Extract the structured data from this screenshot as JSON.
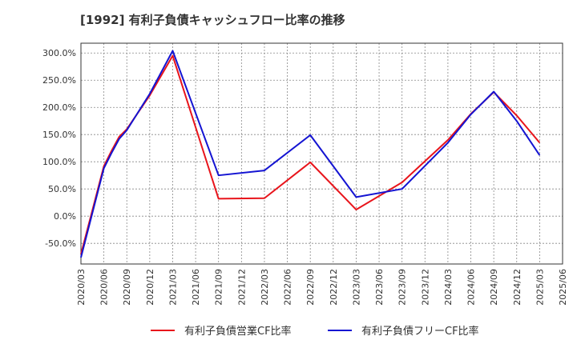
{
  "chart_data": {
    "type": "line",
    "title": "[1992]  有利子負債キャッシュフロー比率の推移",
    "xlabel": "",
    "ylabel": "",
    "x_ticks": [
      "2020/03",
      "2020/06",
      "2020/09",
      "2020/12",
      "2021/03",
      "2021/06",
      "2021/09",
      "2021/12",
      "2022/03",
      "2022/06",
      "2022/09",
      "2022/12",
      "2023/03",
      "2023/06",
      "2023/09",
      "2023/12",
      "2024/03",
      "2024/06",
      "2024/09",
      "2024/12",
      "2025/03",
      "2025/06"
    ],
    "y_ticks": [
      -50,
      0,
      50,
      100,
      150,
      200,
      250,
      300
    ],
    "y_tick_labels": [
      "-50.0%",
      "0.0%",
      "50.0%",
      "100.0%",
      "150.0%",
      "200.0%",
      "250.0%",
      "300.0%"
    ],
    "ylim": [
      -88,
      318
    ],
    "grid": true,
    "legend_position": "bottom",
    "series": [
      {
        "name": "有利子負債営業CF比率",
        "color": "#e8141b",
        "points": [
          [
            "2020/03",
            -70
          ],
          [
            "2020/06",
            92
          ],
          [
            "2020/07",
            120
          ],
          [
            "2020/08",
            146
          ],
          [
            "2020/09",
            160
          ],
          [
            "2020/12",
            222
          ],
          [
            "2021/03",
            295
          ],
          [
            "2021/09",
            32
          ],
          [
            "2022/03",
            33
          ],
          [
            "2022/09",
            99
          ],
          [
            "2023/03",
            12
          ],
          [
            "2023/09",
            62
          ],
          [
            "2024/03",
            140
          ],
          [
            "2024/06",
            188
          ],
          [
            "2024/09",
            228
          ],
          [
            "2024/12",
            185
          ],
          [
            "2025/03",
            135
          ]
        ]
      },
      {
        "name": "有利子負債フリーCF比率",
        "color": "#1414d2",
        "points": [
          [
            "2020/03",
            -76
          ],
          [
            "2020/06",
            88
          ],
          [
            "2020/07",
            116
          ],
          [
            "2020/08",
            142
          ],
          [
            "2020/09",
            158
          ],
          [
            "2020/12",
            225
          ],
          [
            "2021/03",
            304
          ],
          [
            "2021/09",
            75
          ],
          [
            "2022/03",
            84
          ],
          [
            "2022/09",
            149
          ],
          [
            "2023/03",
            35
          ],
          [
            "2023/09",
            50
          ],
          [
            "2024/03",
            135
          ],
          [
            "2024/06",
            187
          ],
          [
            "2024/09",
            229
          ],
          [
            "2024/12",
            175
          ],
          [
            "2025/03",
            112
          ]
        ]
      }
    ]
  }
}
